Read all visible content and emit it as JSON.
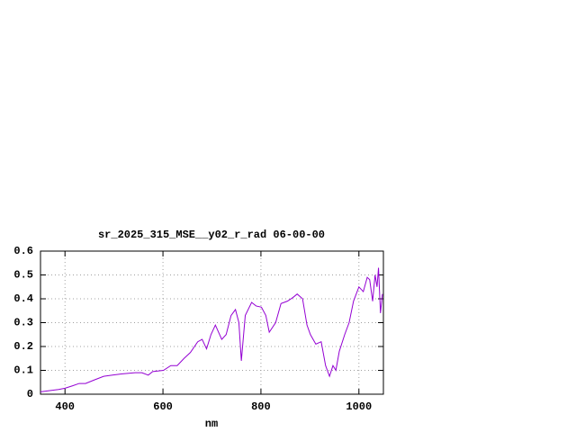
{
  "chart_data": {
    "type": "line",
    "title": "sr_2025_315_MSE__y02_r_rad 06-00-00",
    "x_label": "nm",
    "x": [
      350,
      369,
      387,
      400,
      415,
      429,
      442,
      460,
      479,
      497,
      515,
      543,
      557,
      570,
      579,
      601,
      616,
      629,
      643,
      656,
      671,
      680,
      689,
      698,
      707,
      720,
      729,
      739,
      748,
      755,
      760,
      768,
      781,
      790,
      801,
      810,
      817,
      830,
      841,
      854,
      865,
      874,
      885,
      894,
      901,
      912,
      923,
      932,
      940,
      947,
      953,
      960,
      971,
      980,
      989,
      1000,
      1009,
      1017,
      1022,
      1028,
      1033,
      1037,
      1040,
      1044,
      1048
    ],
    "series": [
      {
        "name": "sr_2025_315_MSE__y02_r_rad",
        "color": "#9400d3",
        "values": [
          0.01,
          0.015,
          0.02,
          0.025,
          0.035,
          0.045,
          0.045,
          0.06,
          0.075,
          0.08,
          0.085,
          0.09,
          0.09,
          0.08,
          0.095,
          0.1,
          0.12,
          0.12,
          0.15,
          0.175,
          0.22,
          0.23,
          0.19,
          0.25,
          0.29,
          0.23,
          0.25,
          0.33,
          0.355,
          0.3,
          0.14,
          0.33,
          0.385,
          0.37,
          0.365,
          0.33,
          0.26,
          0.3,
          0.38,
          0.39,
          0.405,
          0.42,
          0.4,
          0.29,
          0.25,
          0.21,
          0.22,
          0.12,
          0.075,
          0.12,
          0.1,
          0.18,
          0.25,
          0.3,
          0.39,
          0.45,
          0.43,
          0.49,
          0.48,
          0.39,
          0.5,
          0.45,
          0.53,
          0.34,
          0.42
        ]
      }
    ],
    "xlim": [
      350,
      1050
    ],
    "xticks": [
      400,
      600,
      800,
      1000
    ],
    "ylim": [
      0,
      0.6
    ],
    "yticks": [
      0,
      0.1,
      0.2,
      0.3,
      0.4,
      0.5,
      0.6
    ],
    "grid": true
  }
}
